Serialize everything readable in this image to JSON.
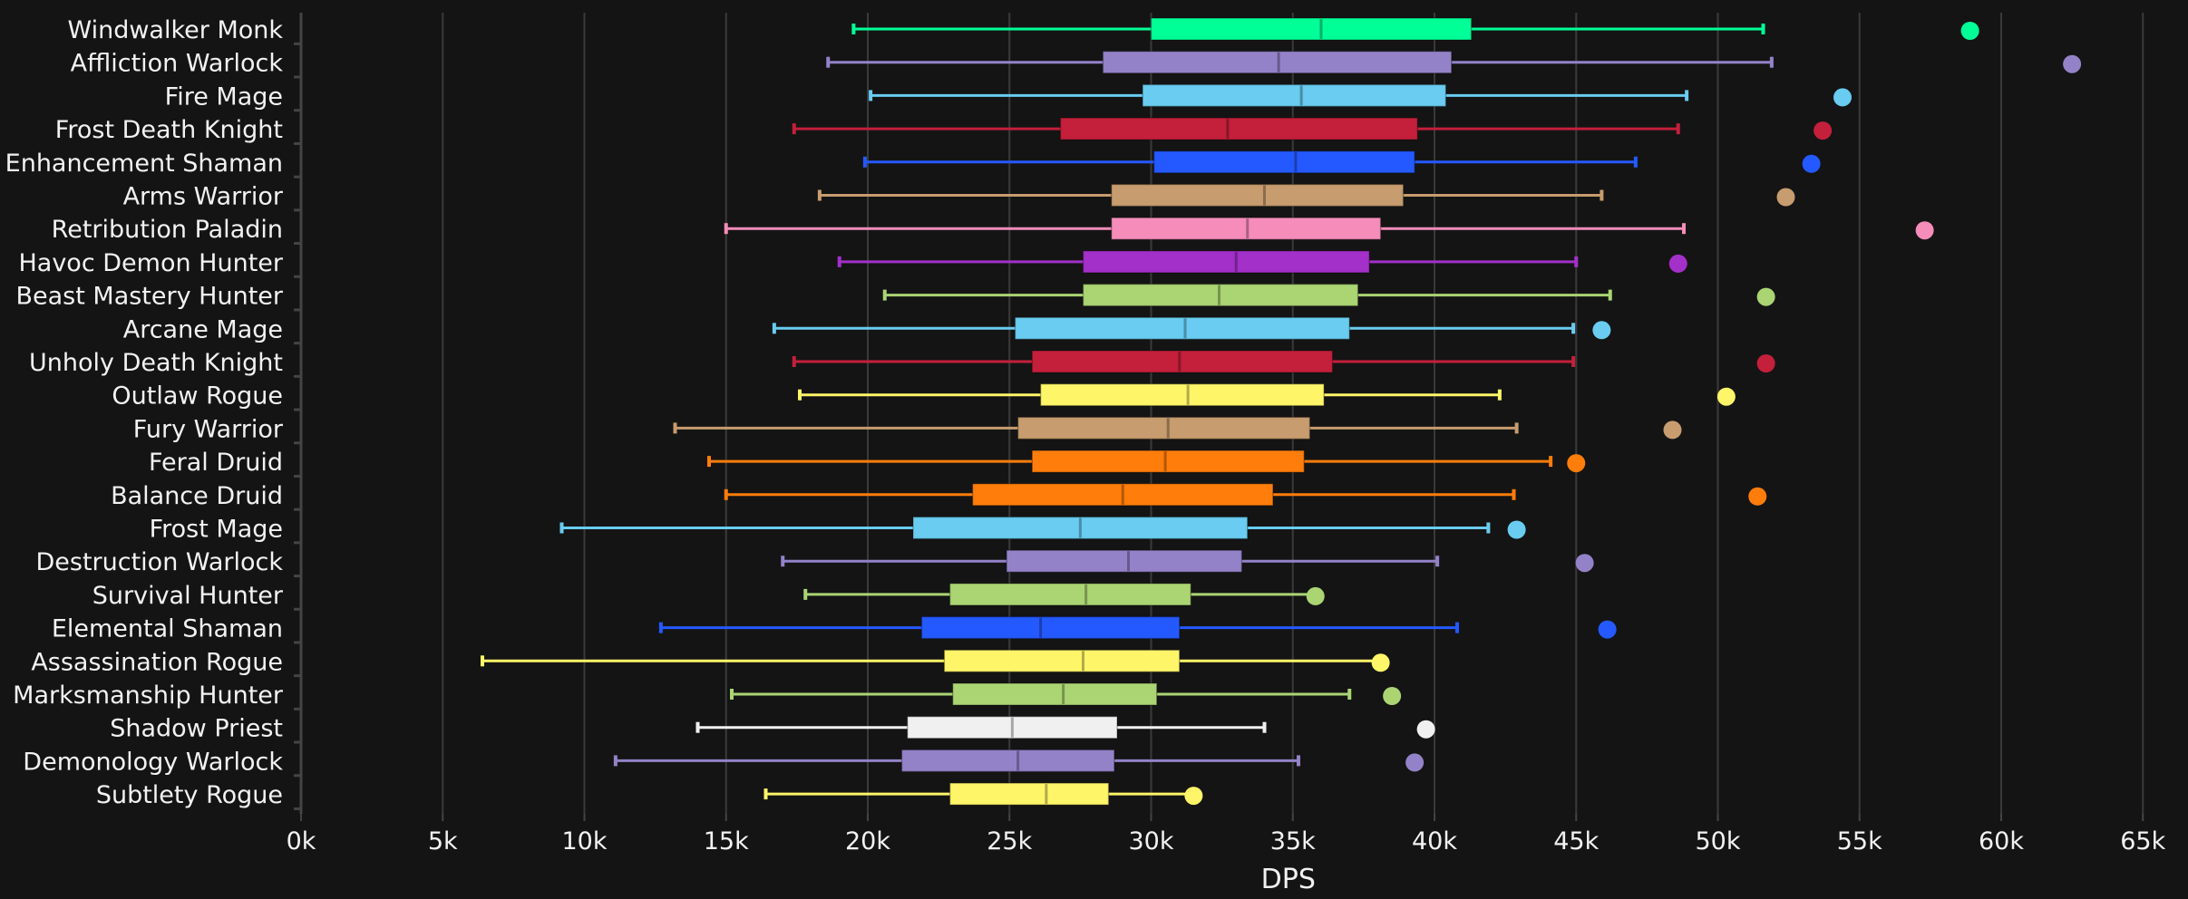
{
  "chart_data": {
    "type": "boxplot",
    "title": "",
    "xlabel": "DPS",
    "ylabel": "",
    "xlim": [
      0,
      66000
    ],
    "xticks": [
      0,
      5000,
      10000,
      15000,
      20000,
      25000,
      30000,
      35000,
      40000,
      45000,
      50000,
      55000,
      60000,
      65000
    ],
    "xtick_labels": [
      "0k",
      "5k",
      "10k",
      "15k",
      "20k",
      "25k",
      "30k",
      "35k",
      "40k",
      "45k",
      "50k",
      "55k",
      "60k",
      "65k"
    ],
    "grid": "vertical",
    "legend": "none",
    "series": [
      {
        "name": "Windwalker Monk",
        "color": "#00FF96",
        "min": 19500,
        "q1": 30000,
        "median": 36000,
        "q3": 41300,
        "max": 51600,
        "max_point": 58900
      },
      {
        "name": "Affliction Warlock",
        "color": "#9482C9",
        "min": 18600,
        "q1": 28300,
        "median": 34500,
        "q3": 40600,
        "max": 51900,
        "max_point": 62500
      },
      {
        "name": "Fire Mage",
        "color": "#69CCF0",
        "min": 20100,
        "q1": 29700,
        "median": 35300,
        "q3": 40400,
        "max": 48900,
        "max_point": 54400
      },
      {
        "name": "Frost Death Knight",
        "color": "#C41F3B",
        "min": 17400,
        "q1": 26800,
        "median": 32700,
        "q3": 39400,
        "max": 48600,
        "max_point": 53700
      },
      {
        "name": "Enhancement Shaman",
        "color": "#2459FF",
        "min": 19900,
        "q1": 30100,
        "median": 35100,
        "q3": 39300,
        "max": 47100,
        "max_point": 53300
      },
      {
        "name": "Arms Warrior",
        "color": "#C79C6E",
        "min": 18300,
        "q1": 28600,
        "median": 34000,
        "q3": 38900,
        "max": 45900,
        "max_point": 52400
      },
      {
        "name": "Retribution Paladin",
        "color": "#F58CBA",
        "min": 15000,
        "q1": 28600,
        "median": 33400,
        "q3": 38100,
        "max": 48800,
        "max_point": 57300
      },
      {
        "name": "Havoc Demon Hunter",
        "color": "#A330C9",
        "min": 19000,
        "q1": 27600,
        "median": 33000,
        "q3": 37700,
        "max": 45000,
        "max_point": 48600
      },
      {
        "name": "Beast Mastery Hunter",
        "color": "#ABD473",
        "min": 20600,
        "q1": 27600,
        "median": 32400,
        "q3": 37300,
        "max": 46200,
        "max_point": 51700
      },
      {
        "name": "Arcane Mage",
        "color": "#69CCF0",
        "min": 16700,
        "q1": 25200,
        "median": 31200,
        "q3": 37000,
        "max": 44900,
        "max_point": 45900
      },
      {
        "name": "Unholy Death Knight",
        "color": "#C41F3B",
        "min": 17400,
        "q1": 25800,
        "median": 31000,
        "q3": 36400,
        "max": 44900,
        "max_point": 51700
      },
      {
        "name": "Outlaw Rogue",
        "color": "#FFF569",
        "min": 17600,
        "q1": 26100,
        "median": 31300,
        "q3": 36100,
        "max": 42300,
        "max_point": 50300
      },
      {
        "name": "Fury Warrior",
        "color": "#C79C6E",
        "min": 13200,
        "q1": 25300,
        "median": 30600,
        "q3": 35600,
        "max": 42900,
        "max_point": 48400
      },
      {
        "name": "Feral Druid",
        "color": "#FF7D0A",
        "min": 14400,
        "q1": 25800,
        "median": 30500,
        "q3": 35400,
        "max": 44100,
        "max_point": 45000
      },
      {
        "name": "Balance Druid",
        "color": "#FF7D0A",
        "min": 15000,
        "q1": 23700,
        "median": 29000,
        "q3": 34300,
        "max": 42800,
        "max_point": 51400
      },
      {
        "name": "Frost Mage",
        "color": "#69CCF0",
        "min": 9200,
        "q1": 21600,
        "median": 27500,
        "q3": 33400,
        "max": 41900,
        "max_point": 42900
      },
      {
        "name": "Destruction Warlock",
        "color": "#9482C9",
        "min": 17000,
        "q1": 24900,
        "median": 29200,
        "q3": 33200,
        "max": 40100,
        "max_point": 45300
      },
      {
        "name": "Survival Hunter",
        "color": "#ABD473",
        "min": 17800,
        "q1": 22900,
        "median": 27700,
        "q3": 31400,
        "max": 35800,
        "max_point": 35800
      },
      {
        "name": "Elemental Shaman",
        "color": "#2459FF",
        "min": 12700,
        "q1": 21900,
        "median": 26100,
        "q3": 31000,
        "max": 40800,
        "max_point": 46100
      },
      {
        "name": "Assassination Rogue",
        "color": "#FFF569",
        "min": 6400,
        "q1": 22700,
        "median": 27600,
        "q3": 31000,
        "max": 38100,
        "max_point": 38100
      },
      {
        "name": "Marksmanship Hunter",
        "color": "#ABD473",
        "min": 15200,
        "q1": 23000,
        "median": 26900,
        "q3": 30200,
        "max": 37000,
        "max_point": 38500
      },
      {
        "name": "Shadow Priest",
        "color": "#F0F0F0",
        "min": 14000,
        "q1": 21400,
        "median": 25100,
        "q3": 28800,
        "max": 34000,
        "max_point": 39700
      },
      {
        "name": "Demonology Warlock",
        "color": "#9482C9",
        "min": 11100,
        "q1": 21200,
        "median": 25300,
        "q3": 28700,
        "max": 35200,
        "max_point": 39300
      },
      {
        "name": "Subtlety Rogue",
        "color": "#FFF569",
        "min": 16400,
        "q1": 22900,
        "median": 26300,
        "q3": 28500,
        "max": 31500,
        "max_point": 31500
      }
    ]
  },
  "colors": {
    "background": "#141414",
    "grid": "#3a3a3a",
    "axis": "#444444",
    "text": "#f2f2f2"
  }
}
